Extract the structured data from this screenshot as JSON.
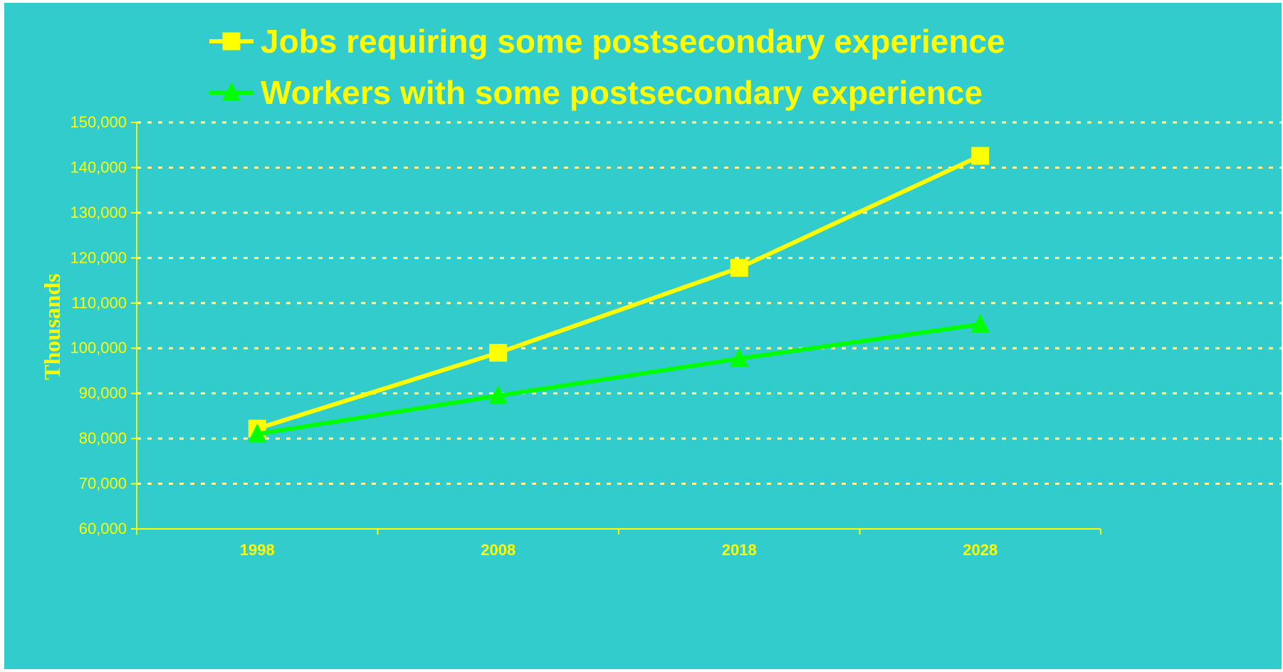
{
  "colors": {
    "background": "#33CCCC",
    "text": "#FFFF00",
    "axis": "#FFFF00",
    "grid": "#FFFF99",
    "series_jobs": "#FFFF00",
    "series_workers": "#00FF00"
  },
  "chart_data": {
    "type": "line",
    "title": "",
    "xlabel": "",
    "ylabel": "Thousands",
    "categories": [
      "1998",
      "2008",
      "2018",
      "2028"
    ],
    "ylim": [
      60000,
      150000
    ],
    "yticks": [
      60000,
      70000,
      80000,
      90000,
      100000,
      110000,
      120000,
      130000,
      140000,
      150000
    ],
    "ytick_labels": [
      "60,000",
      "70,000",
      "80,000",
      "90,000",
      "100,000",
      "110,000",
      "120,000",
      "130,000",
      "140,000",
      "150,000"
    ],
    "grid": "horizontal dotted",
    "legend_position": "top",
    "series": [
      {
        "name": "Jobs requiring some postsecondary experience",
        "marker": "square",
        "color": "#FFFF00",
        "values": [
          82200,
          99000,
          117800,
          142600
        ]
      },
      {
        "name": "Workers with some postsecondary experience",
        "marker": "triangle",
        "color": "#00FF00",
        "values": [
          81000,
          89500,
          97700,
          105300
        ]
      }
    ]
  }
}
